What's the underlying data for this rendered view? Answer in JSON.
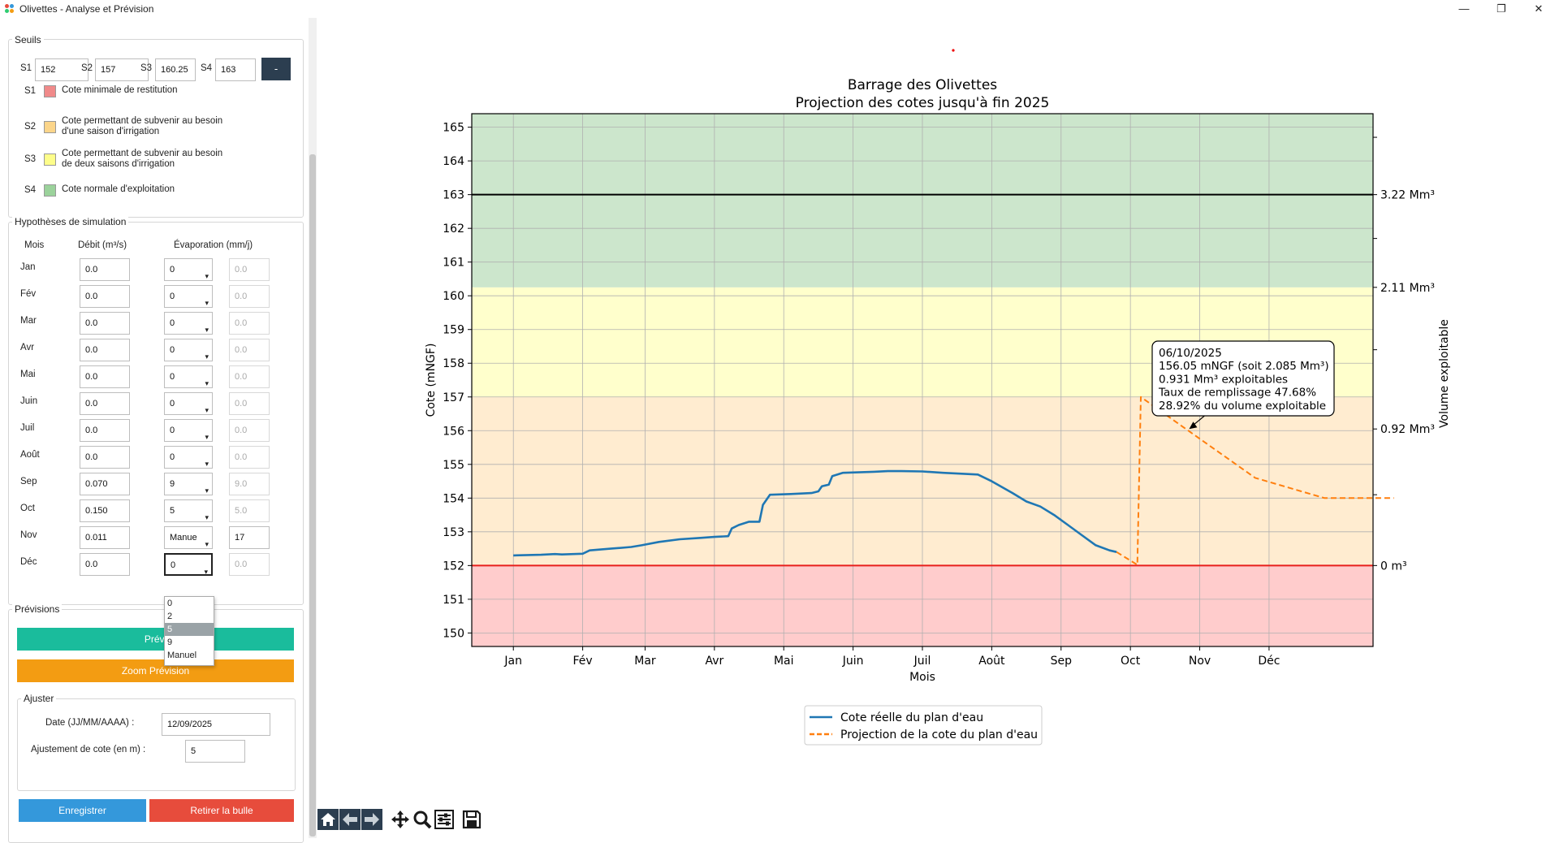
{
  "window": {
    "title": "Olivettes - Analyse et Prévision",
    "minimize": "—",
    "maximize": "❐",
    "close": "✕"
  },
  "seuils": {
    "title": "Seuils",
    "fields": [
      {
        "label": "S1",
        "value": "152"
      },
      {
        "label": "S2",
        "value": "157"
      },
      {
        "label": "S3",
        "value": "160.25"
      },
      {
        "label": "S4",
        "value": "163"
      }
    ],
    "collapse_button": "-",
    "legend": [
      {
        "code": "S1",
        "color": "#f08a8a",
        "text": "Cote minimale de restitution"
      },
      {
        "code": "S2",
        "color": "#fbd58a",
        "text": "Cote permettant de subvenir au besoin\nd'une saison d'irrigation"
      },
      {
        "code": "S3",
        "color": "#fdfd8a",
        "text": "Cote permettant de subvenir au besoin\nde deux saisons d'irrigation"
      },
      {
        "code": "S4",
        "color": "#9bd29b",
        "text": "Cote normale d'exploitation"
      }
    ]
  },
  "hypotheses": {
    "title": "Hypothèses de simulation",
    "headers": {
      "mois": "Mois",
      "debit": "Débit (m³/s)",
      "evap": "Évaporation (mm/j)"
    },
    "rows": [
      {
        "mois": "Jan",
        "debit": "0.0",
        "evap": "0",
        "manual": "0.0",
        "manual_enabled": false
      },
      {
        "mois": "Fév",
        "debit": "0.0",
        "evap": "0",
        "manual": "0.0",
        "manual_enabled": false
      },
      {
        "mois": "Mar",
        "debit": "0.0",
        "evap": "0",
        "manual": "0.0",
        "manual_enabled": false
      },
      {
        "mois": "Avr",
        "debit": "0.0",
        "evap": "0",
        "manual": "0.0",
        "manual_enabled": false
      },
      {
        "mois": "Mai",
        "debit": "0.0",
        "evap": "0",
        "manual": "0.0",
        "manual_enabled": false
      },
      {
        "mois": "Juin",
        "debit": "0.0",
        "evap": "0",
        "manual": "0.0",
        "manual_enabled": false
      },
      {
        "mois": "Juil",
        "debit": "0.0",
        "evap": "0",
        "manual": "0.0",
        "manual_enabled": false
      },
      {
        "mois": "Août",
        "debit": "0.0",
        "evap": "0",
        "manual": "0.0",
        "manual_enabled": false
      },
      {
        "mois": "Sep",
        "debit": "0.070",
        "evap": "9",
        "manual": "9.0",
        "manual_enabled": false
      },
      {
        "mois": "Oct",
        "debit": "0.150",
        "evap": "5",
        "manual": "5.0",
        "manual_enabled": false
      },
      {
        "mois": "Nov",
        "debit": "0.011",
        "evap": "Manue",
        "manual": "17",
        "manual_enabled": true
      },
      {
        "mois": "Déc",
        "debit": "0.0",
        "evap": "0",
        "manual": "0.0",
        "manual_enabled": false
      }
    ],
    "dropdown_options": [
      "0",
      "2",
      "5",
      "9",
      "Manuel"
    ],
    "dropdown_selected": "5"
  },
  "previsions": {
    "title": "Prévisions",
    "prevision_button": "Prévi",
    "zoom_button": "Zoom Prévision",
    "ajuster": {
      "title": "Ajuster",
      "date_label": "Date (JJ/MM/AAAA) :",
      "date_value": "12/09/2025",
      "cote_label": "Ajustement de cote (en m) :",
      "cote_value": "5"
    },
    "save_button": "Enregistrer",
    "remove_button": "Retirer la bulle"
  },
  "chart_data": {
    "type": "line",
    "title": "Barrage des Olivettes",
    "subtitle": "Projection des cotes jusqu'à fin 2025",
    "xlabel": "Mois",
    "ylabel": "Cote (mNGF)",
    "y2label": "Volume exploitable",
    "ylim": [
      149.6,
      165.4
    ],
    "xlim": [
      0,
      13
    ],
    "yticks": [
      150,
      151,
      152,
      153,
      154,
      155,
      156,
      157,
      158,
      159,
      160,
      161,
      162,
      163,
      164,
      165
    ],
    "xticks": [
      {
        "pos": 0.6,
        "label": "Jan"
      },
      {
        "pos": 1.6,
        "label": "Fév"
      },
      {
        "pos": 2.5,
        "label": "Mar"
      },
      {
        "pos": 3.5,
        "label": "Avr"
      },
      {
        "pos": 4.5,
        "label": "Mai"
      },
      {
        "pos": 5.5,
        "label": "Juin"
      },
      {
        "pos": 6.5,
        "label": "Juil"
      },
      {
        "pos": 7.5,
        "label": "Août"
      },
      {
        "pos": 8.5,
        "label": "Sep"
      },
      {
        "pos": 9.5,
        "label": "Oct"
      },
      {
        "pos": 10.5,
        "label": "Nov"
      },
      {
        "pos": 11.5,
        "label": "Déc"
      }
    ],
    "grid": true,
    "bands": [
      {
        "from": 149.6,
        "to": 152,
        "color": "#ffcccc"
      },
      {
        "from": 152,
        "to": 157,
        "color": "#ffecd0"
      },
      {
        "from": 157,
        "to": 160.25,
        "color": "#ffffcc"
      },
      {
        "from": 160.25,
        "to": 165.4,
        "color": "#cce6cc"
      }
    ],
    "hlines": [
      {
        "y": 152,
        "color": "#e8201c"
      },
      {
        "y": 163,
        "color": "#000000"
      }
    ],
    "right_ticks": [
      {
        "y": 163,
        "label": "3.22 Mm³"
      },
      {
        "y": 160.25,
        "label": "2.11 Mm³"
      },
      {
        "y": 156.05,
        "label": "0.92 Mm³"
      },
      {
        "y": 152,
        "label": "0 m³"
      }
    ],
    "right_minor_ticks": [
      164.7,
      161.7,
      158.4,
      154.1
    ],
    "series": [
      {
        "name": "Cote réelle du plan d'eau",
        "color": "#1f77b4",
        "style": "solid",
        "points": [
          [
            0.6,
            152.3
          ],
          [
            1.0,
            152.32
          ],
          [
            1.2,
            152.34
          ],
          [
            1.3,
            152.33
          ],
          [
            1.6,
            152.35
          ],
          [
            1.7,
            152.45
          ],
          [
            2.0,
            152.5
          ],
          [
            2.3,
            152.55
          ],
          [
            2.45,
            152.6
          ],
          [
            2.7,
            152.7
          ],
          [
            3.0,
            152.78
          ],
          [
            3.3,
            152.82
          ],
          [
            3.5,
            152.85
          ],
          [
            3.7,
            152.87
          ],
          [
            3.75,
            153.1
          ],
          [
            3.85,
            153.2
          ],
          [
            4.0,
            153.3
          ],
          [
            4.15,
            153.3
          ],
          [
            4.2,
            153.8
          ],
          [
            4.3,
            154.1
          ],
          [
            4.6,
            154.12
          ],
          [
            4.9,
            154.15
          ],
          [
            5.0,
            154.2
          ],
          [
            5.05,
            154.35
          ],
          [
            5.15,
            154.4
          ],
          [
            5.2,
            154.65
          ],
          [
            5.35,
            154.75
          ],
          [
            5.8,
            154.78
          ],
          [
            6.0,
            154.8
          ],
          [
            6.2,
            154.8
          ],
          [
            6.5,
            154.79
          ],
          [
            6.8,
            154.75
          ],
          [
            7.1,
            154.72
          ],
          [
            7.3,
            154.7
          ],
          [
            7.5,
            154.5
          ],
          [
            7.8,
            154.15
          ],
          [
            8.0,
            153.9
          ],
          [
            8.2,
            153.75
          ],
          [
            8.4,
            153.5
          ],
          [
            8.6,
            153.2
          ],
          [
            8.8,
            152.9
          ],
          [
            9.0,
            152.6
          ],
          [
            9.2,
            152.45
          ],
          [
            9.3,
            152.4
          ]
        ]
      },
      {
        "name": "Projection de la cote du plan d'eau",
        "color": "#ff7f0e",
        "style": "dashed",
        "points": [
          [
            9.3,
            152.4
          ],
          [
            9.6,
            152.02
          ],
          [
            9.65,
            157.0
          ],
          [
            10.3,
            156.05
          ],
          [
            11.3,
            154.6
          ],
          [
            12.3,
            154.0
          ],
          [
            13.3,
            154.0
          ]
        ]
      }
    ],
    "annotation": {
      "lines": [
        "06/10/2025",
        "156.05 mNGF (soit 2.085 Mm³)",
        "0.931 Mm³ exploitables",
        "Taux de remplissage 47.68%",
        "28.92% du volume exploitable"
      ],
      "target": [
        10.3,
        156.05
      ]
    },
    "legend_position": "bottom-center"
  },
  "toolbar": [
    "home-icon",
    "back-icon",
    "forward-icon",
    "pan-icon",
    "zoom-icon",
    "configure-icon",
    "save-icon"
  ]
}
